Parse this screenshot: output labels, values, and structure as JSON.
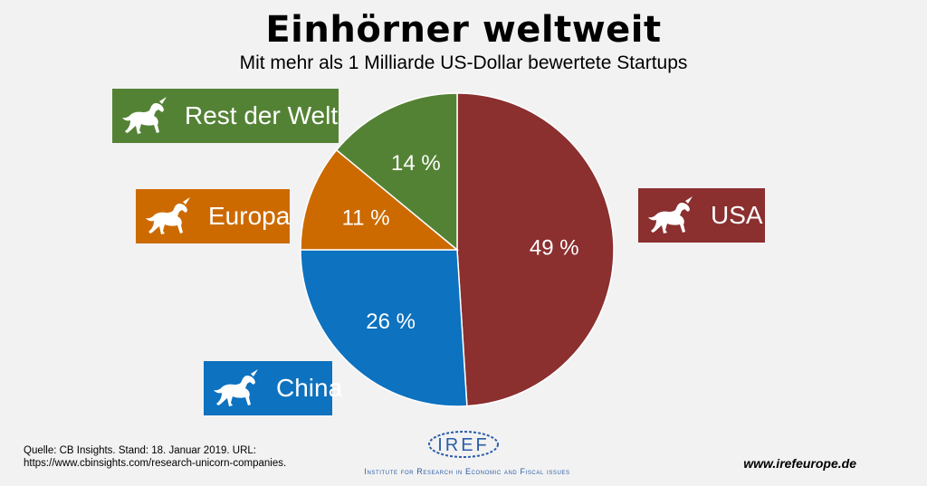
{
  "title": "Einhörner weltweit",
  "subtitle": "Mit mehr als 1 Milliarde US-Dollar bewertete Startups",
  "chart_data": {
    "type": "pie",
    "title": "Einhörner weltweit",
    "subtitle": "Mit mehr als 1 Milliarde US-Dollar bewertete Startups",
    "slices": [
      {
        "label": "USA",
        "value": 49,
        "value_label": "49 %",
        "color": "#8b2f2f"
      },
      {
        "label": "China",
        "value": 26,
        "value_label": "26 %",
        "color": "#0d72bf"
      },
      {
        "label": "Europa",
        "value": 11,
        "value_label": "11 %",
        "color": "#cc6a00"
      },
      {
        "label": "Rest der Welt",
        "value": 14,
        "value_label": "14 %",
        "color": "#548235"
      }
    ],
    "start_angle": "12 o'clock",
    "direction": "clockwise"
  },
  "legend_icon": "unicorn-icon",
  "footer": {
    "source_line1": "Quelle: CB Insights. Stand: 18. Januar 2019. URL:",
    "source_line2": "https://www.cbinsights.com/research-unicorn-companies.",
    "website": "www.irefeurope.de",
    "logo_text": "IREF",
    "logo_tagline": "Institute for Research in Economic and Fiscal issues"
  }
}
